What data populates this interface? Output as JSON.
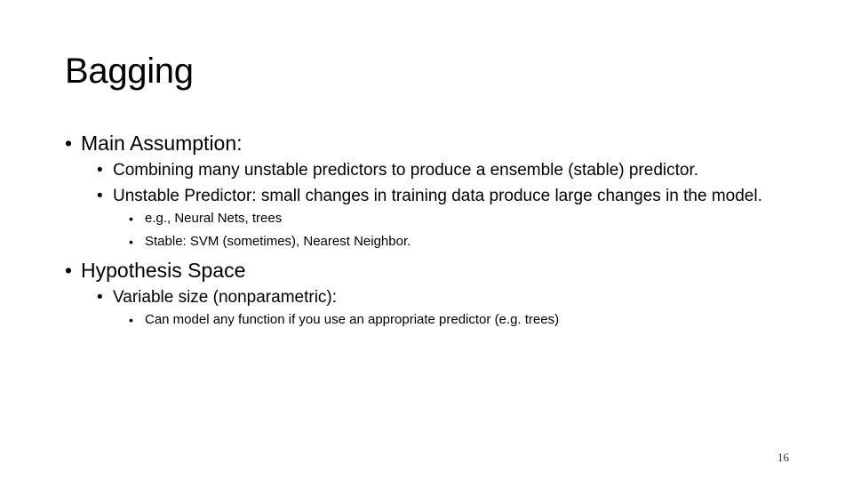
{
  "slide": {
    "title": "Bagging",
    "bullet_symbol": "•",
    "page_number": "16"
  },
  "bullets": [
    {
      "text": "Main Assumption:",
      "children": [
        {
          "text": "Combining many unstable predictors to produce a ensemble (stable) predictor."
        },
        {
          "text": "Unstable Predictor: small changes in training data produce large changes in the model.",
          "children": [
            {
              "text": "e.g., Neural Nets, trees"
            },
            {
              "text": "Stable: SVM (sometimes), Nearest Neighbor."
            }
          ]
        }
      ]
    },
    {
      "text": "Hypothesis Space",
      "children": [
        {
          "text": "Variable size (nonparametric):",
          "children": [
            {
              "text": "Can model any function if you use an appropriate predictor (e.g. trees)"
            }
          ]
        }
      ]
    }
  ]
}
